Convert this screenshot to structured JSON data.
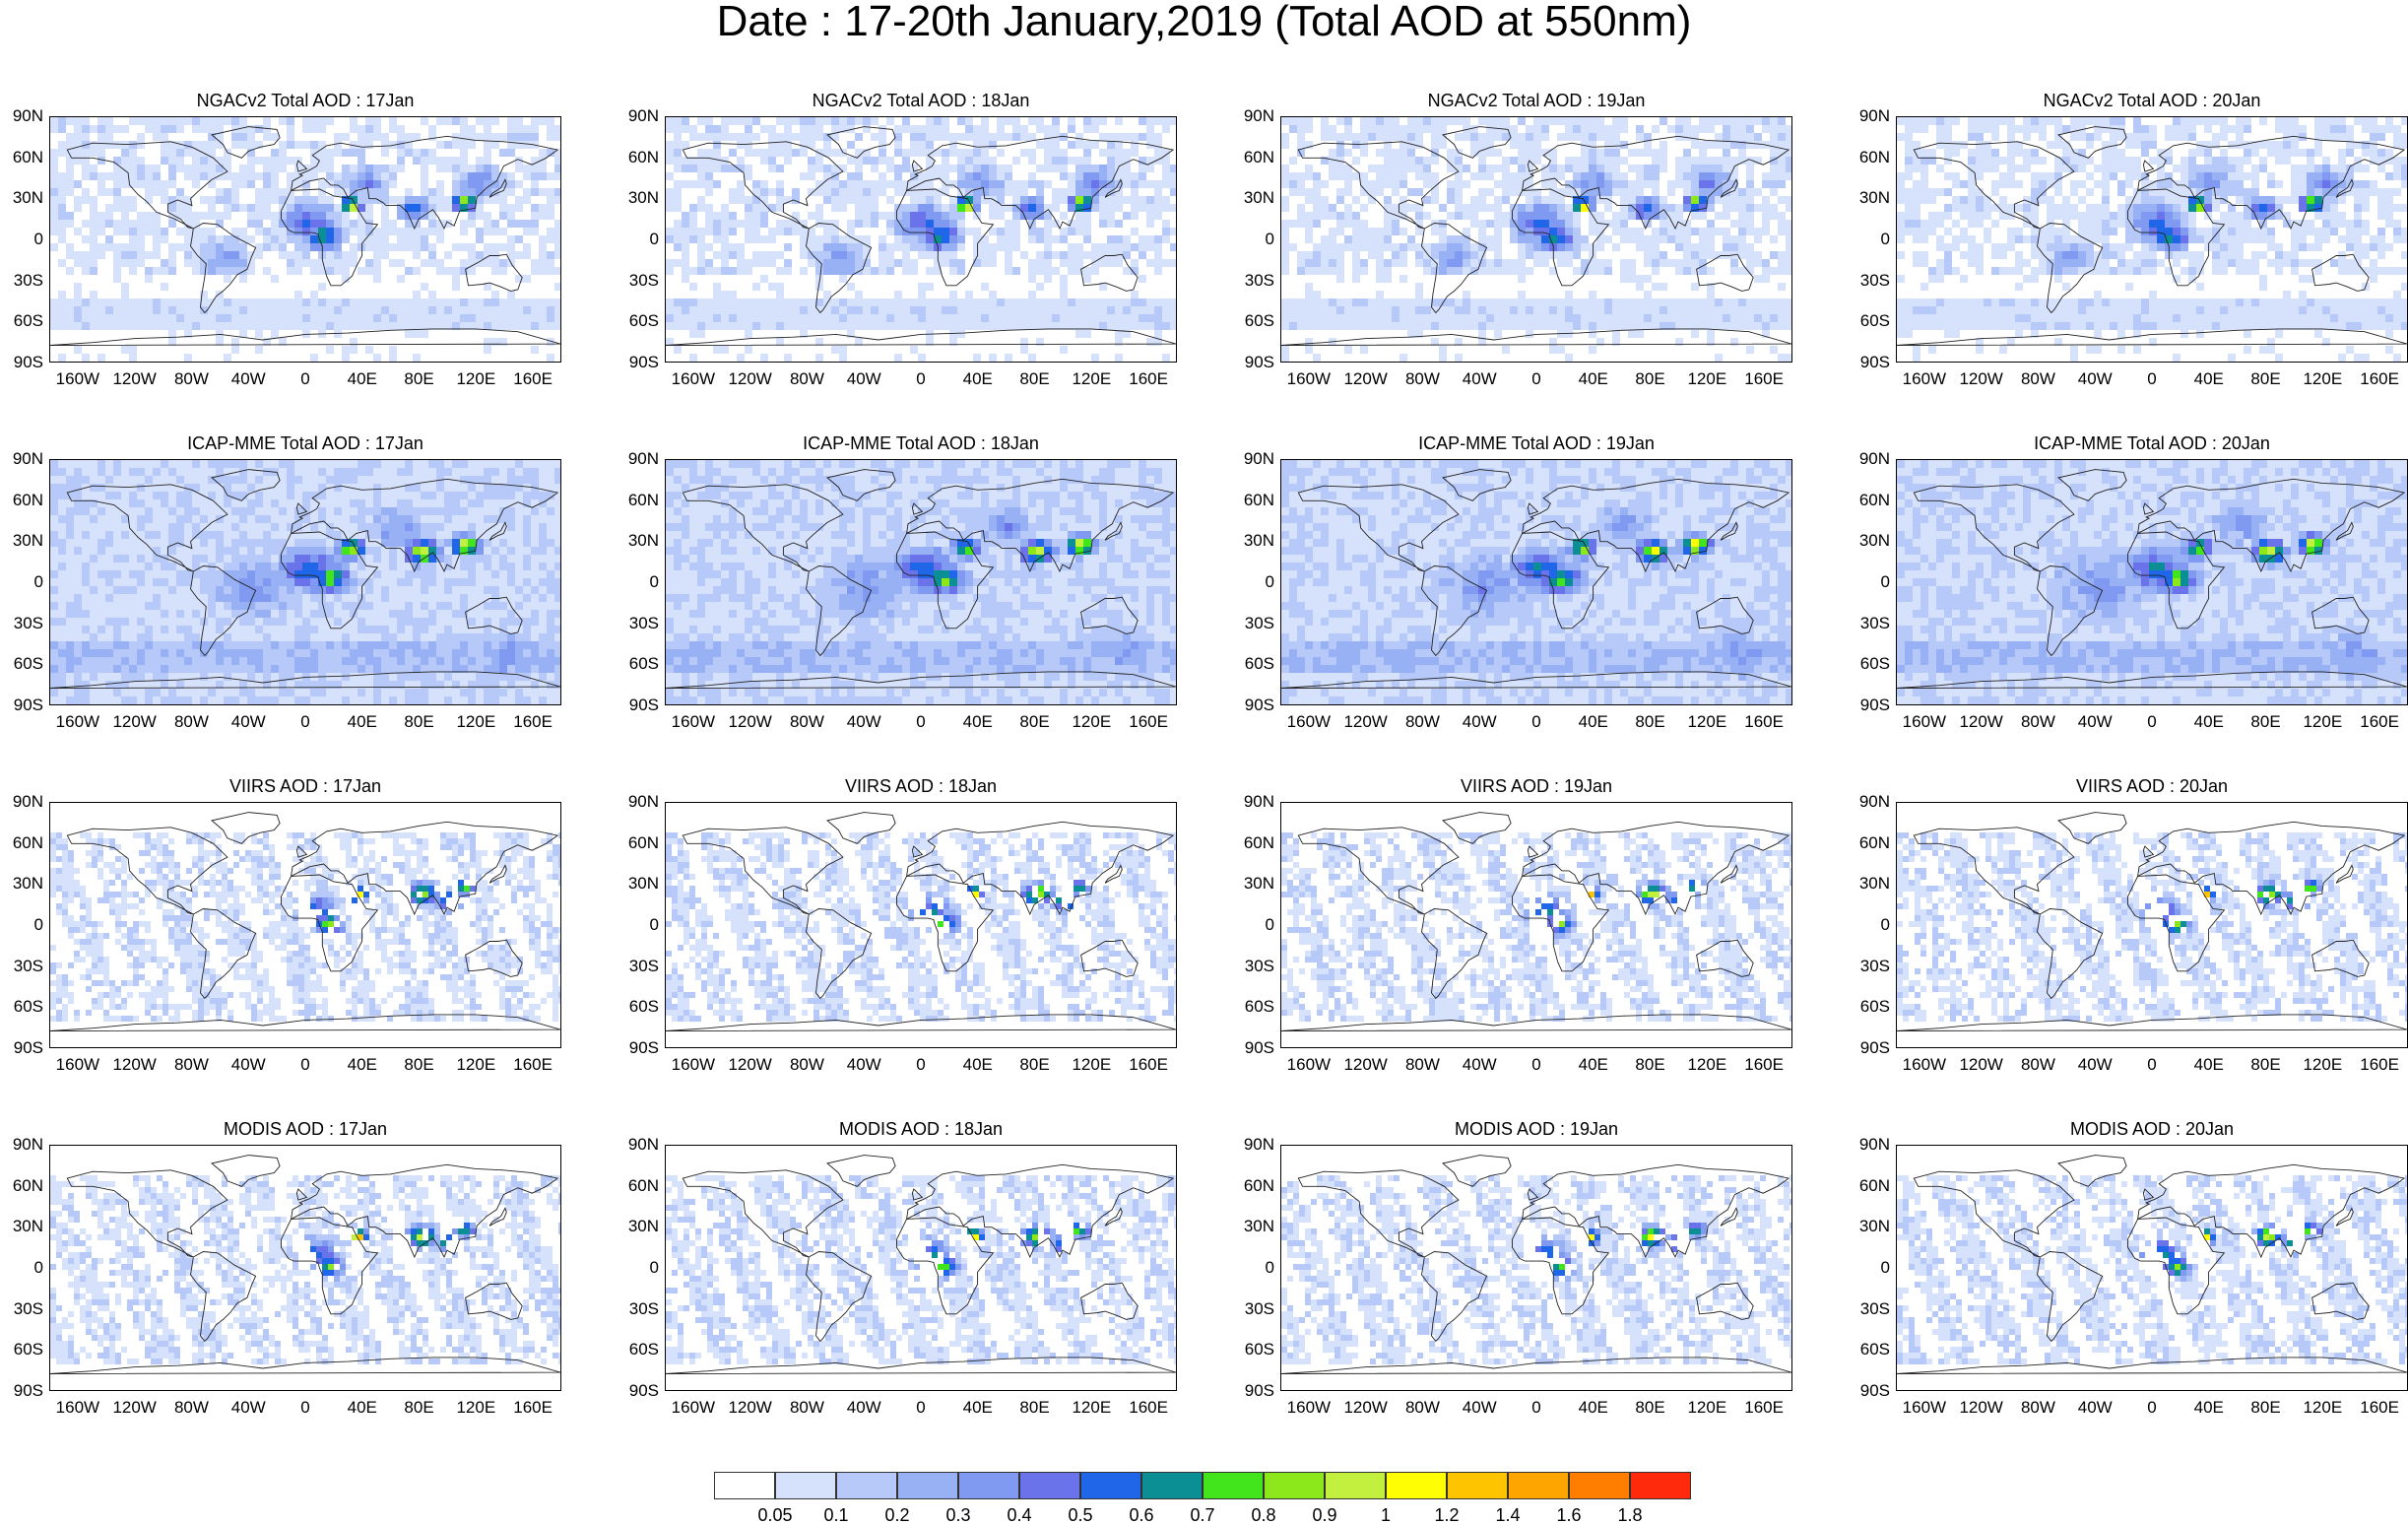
{
  "title": "Date : 17-20th January,2019 (Total AOD at 550nm)",
  "panels": [
    {
      "title": "NGACv2 Total AOD : 17Jan",
      "model": "ngac"
    },
    {
      "title": "NGACv2 Total AOD : 18Jan",
      "model": "ngac"
    },
    {
      "title": "NGACv2 Total AOD : 19Jan",
      "model": "ngac"
    },
    {
      "title": "NGACv2 Total AOD : 20Jan",
      "model": "ngac"
    },
    {
      "title": "ICAP-MME Total AOD : 17Jan",
      "model": "icap"
    },
    {
      "title": "ICAP-MME Total AOD : 18Jan",
      "model": "icap"
    },
    {
      "title": "ICAP-MME Total AOD : 19Jan",
      "model": "icap"
    },
    {
      "title": "ICAP-MME Total AOD : 20Jan",
      "model": "icap"
    },
    {
      "title": "VIIRS AOD : 17Jan",
      "model": "sat"
    },
    {
      "title": "VIIRS AOD : 18Jan",
      "model": "sat"
    },
    {
      "title": "VIIRS AOD : 19Jan",
      "model": "sat"
    },
    {
      "title": "VIIRS AOD : 20Jan",
      "model": "sat"
    },
    {
      "title": "MODIS AOD : 17Jan",
      "model": "sat"
    },
    {
      "title": "MODIS AOD : 18Jan",
      "model": "sat"
    },
    {
      "title": "MODIS AOD : 19Jan",
      "model": "sat"
    },
    {
      "title": "MODIS AOD : 20Jan",
      "model": "sat"
    }
  ],
  "lat_labels": [
    "90N",
    "60N",
    "30N",
    "0",
    "30S",
    "60S",
    "90S"
  ],
  "lon_labels": [
    "160W",
    "120W",
    "80W",
    "40W",
    "0",
    "40E",
    "80E",
    "120E",
    "160E"
  ],
  "colorbar": {
    "colors": [
      "#ffffff",
      "#d6e1fb",
      "#b7c9f8",
      "#98b1f5",
      "#7f9af0",
      "#6a73ea",
      "#1f66e8",
      "#0c8f94",
      "#42e51b",
      "#8ce81b",
      "#c3ef3e",
      "#fffe03",
      "#ffc400",
      "#ffa500",
      "#ff7e00",
      "#ff2a0c"
    ],
    "labels": [
      "0.05",
      "0.1",
      "0.2",
      "0.3",
      "0.4",
      "0.5",
      "0.6",
      "0.7",
      "0.8",
      "0.9",
      "1",
      "1.2",
      "1.4",
      "1.6",
      "1.8"
    ]
  }
}
